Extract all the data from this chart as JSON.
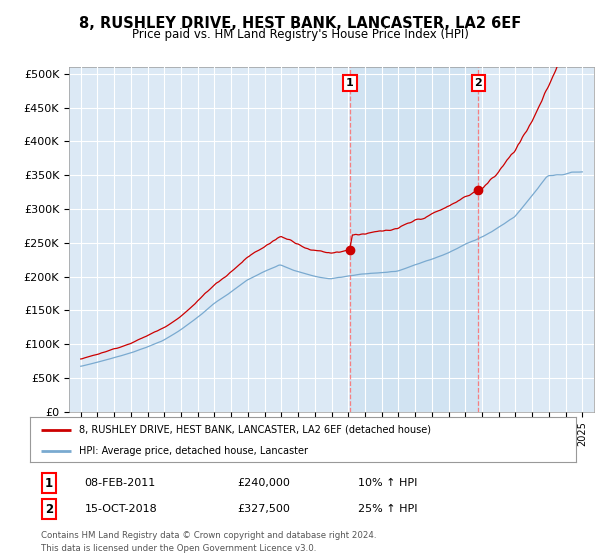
{
  "title": "8, RUSHLEY DRIVE, HEST BANK, LANCASTER, LA2 6EF",
  "subtitle": "Price paid vs. HM Land Registry's House Price Index (HPI)",
  "ytick_labels": [
    "£0",
    "£50K",
    "£100K",
    "£150K",
    "£200K",
    "£250K",
    "£300K",
    "£350K",
    "£400K",
    "£450K",
    "£500K"
  ],
  "yticks": [
    0,
    50000,
    100000,
    150000,
    200000,
    250000,
    300000,
    350000,
    400000,
    450000,
    500000
  ],
  "purchase1_year": 2011.1,
  "purchase1_price": 240000,
  "purchase1_label": "08-FEB-2011",
  "purchase1_hpi_text": "10% ↑ HPI",
  "purchase2_year": 2018.79,
  "purchase2_price": 327500,
  "purchase2_label": "15-OCT-2018",
  "purchase2_hpi_text": "25% ↑ HPI",
  "legend_line1": "8, RUSHLEY DRIVE, HEST BANK, LANCASTER, LA2 6EF (detached house)",
  "legend_line2": "HPI: Average price, detached house, Lancaster",
  "footer1": "Contains HM Land Registry data © Crown copyright and database right 2024.",
  "footer2": "This data is licensed under the Open Government Licence v3.0.",
  "property_color": "#cc0000",
  "hpi_color": "#7aaad0",
  "shade_color": "#c8dff0",
  "bg_color": "#dce9f5"
}
